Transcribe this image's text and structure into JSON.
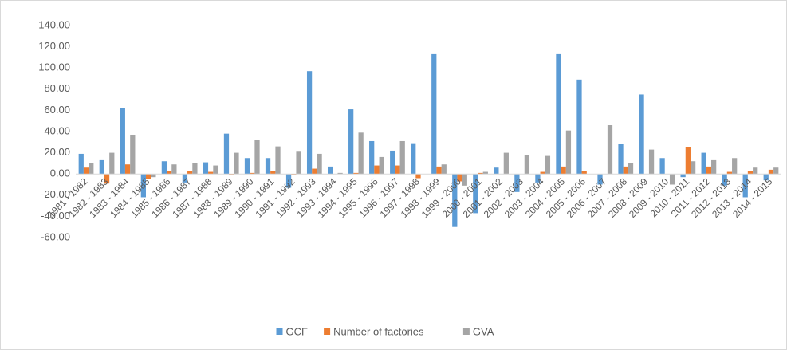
{
  "chart_data": {
    "type": "bar",
    "categories": [
      "1981 - 1982",
      "1982 - 1983",
      "1983 - 1984",
      "1984 - 1985",
      "1985 - 1986",
      "1986 - 1987",
      "1987 - 1988",
      "1988 - 1989",
      "1989 - 1990",
      "1990 - 1991",
      "1991 - 1992",
      "1992 - 1993",
      "1993 - 1994",
      "1994 - 1995",
      "1995 - 1996",
      "1996 - 1997",
      "1997 - 1998",
      "1998 - 1999",
      "1999 - 2000",
      "2000 - 2001",
      "2001 - 2002",
      "2002 - 2003",
      "2003 - 2004",
      "2004 - 2005",
      "2005 - 2006",
      "2006 - 2007",
      "2007 - 2008",
      "2008 - 2009",
      "2009 - 2010",
      "2010 - 2011",
      "2011 - 2012",
      "2012 - 2013",
      "2013 - 2014",
      "2014 - 2015"
    ],
    "series": [
      {
        "name": "GCF",
        "color": "#5b9bd5",
        "values": [
          19,
          13,
          62,
          -22,
          12,
          -8,
          11,
          38,
          15,
          15,
          -13,
          97,
          7,
          61,
          31,
          22,
          29,
          113,
          -50,
          -37,
          6,
          -17,
          -8,
          113,
          89,
          -10,
          28,
          75,
          15,
          -3,
          20,
          -11,
          -22,
          -6
        ]
      },
      {
        "name": "Number of factories",
        "color": "#ed7d31",
        "values": [
          6,
          -9,
          9,
          -5,
          3,
          3,
          2,
          -1,
          1,
          3,
          -1,
          5,
          0,
          1,
          8,
          8,
          -4,
          7,
          -7,
          1,
          0,
          0,
          2,
          7,
          3,
          0,
          7,
          0,
          0,
          25,
          7,
          2,
          3,
          4
        ]
      },
      {
        "name": "GVA",
        "color": "#a5a5a5",
        "values": [
          10,
          20,
          37,
          -3,
          9,
          10,
          8,
          20,
          32,
          26,
          21,
          19,
          1,
          39,
          16,
          31,
          0,
          9,
          -11,
          2,
          20,
          18,
          17,
          41,
          0,
          46,
          10,
          23,
          -10,
          12,
          13,
          15,
          6,
          6
        ]
      }
    ],
    "ylim": [
      -60,
      140
    ],
    "yticks": [
      {
        "value": -60,
        "label": "-60.00"
      },
      {
        "value": -40,
        "label": "-40.00"
      },
      {
        "value": -20,
        "label": "-20.00"
      },
      {
        "value": 0,
        "label": "0.00"
      },
      {
        "value": 20,
        "label": "20.00"
      },
      {
        "value": 40,
        "label": "40.00"
      },
      {
        "value": 60,
        "label": "60.00"
      },
      {
        "value": 80,
        "label": "80.00"
      },
      {
        "value": 100,
        "label": "100.00"
      },
      {
        "value": 120,
        "label": "120.00"
      },
      {
        "value": 140,
        "label": "140.00"
      }
    ],
    "grid": false,
    "legend": "bottom"
  }
}
